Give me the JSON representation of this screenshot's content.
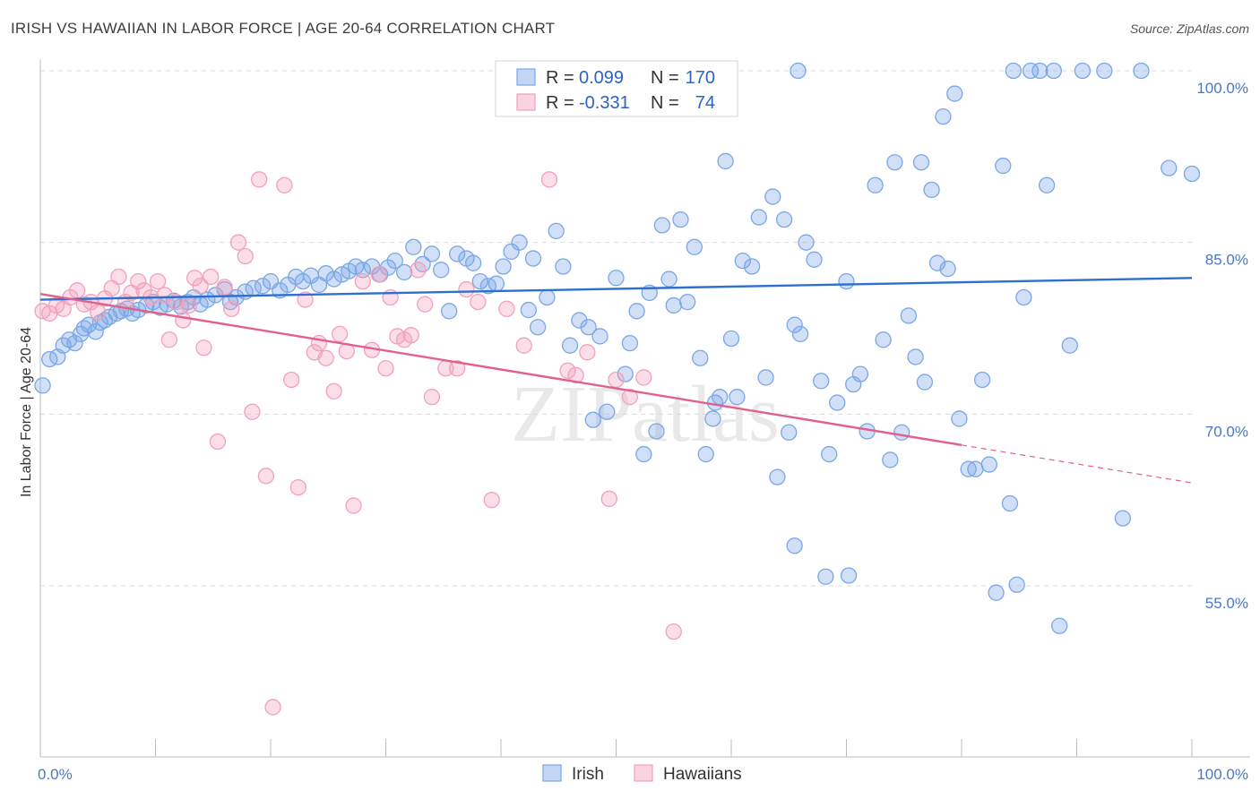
{
  "title": "IRISH VS HAWAIIAN IN LABOR FORCE | AGE 20-64 CORRELATION CHART",
  "source": "Source: ZipAtlas.com",
  "watermark": "ZIPatlas",
  "chart_data": {
    "type": "scatter",
    "xlabel": "",
    "ylabel": "In Labor Force | Age 20-64",
    "xlim": [
      0,
      100
    ],
    "ylim": [
      40,
      103
    ],
    "x_tick_labels": [
      "0.0%",
      "100.0%"
    ],
    "y_ticks": [
      55,
      70,
      85,
      100
    ],
    "y_tick_labels": [
      "55.0%",
      "70.0%",
      "85.0%",
      "100.0%"
    ],
    "grid": true,
    "legend_position": "top-center",
    "legend": [
      {
        "name": "Irish",
        "r_label": "R =",
        "r": "0.099",
        "n_label": "N =",
        "n": "170",
        "color": "#7aa7e8"
      },
      {
        "name": "Hawaiians",
        "r_label": "R =",
        "r": "-0.331",
        "n_label": "N =",
        "n": "74",
        "color": "#f3a0bb"
      }
    ],
    "series": [
      {
        "name": "Irish",
        "color": "#7aa7e8",
        "line_color": "#2e6fcf",
        "trend": {
          "x": [
            0,
            100
          ],
          "y": [
            80.0,
            81.9
          ]
        },
        "points": [
          [
            0.2,
            72.5
          ],
          [
            0.8,
            74.8
          ],
          [
            1.5,
            75.0
          ],
          [
            2.0,
            76.0
          ],
          [
            2.5,
            76.5
          ],
          [
            3.0,
            76.2
          ],
          [
            3.5,
            77.0
          ],
          [
            3.8,
            77.5
          ],
          [
            4.2,
            77.8
          ],
          [
            4.8,
            77.2
          ],
          [
            5.2,
            78.0
          ],
          [
            5.6,
            78.2
          ],
          [
            6.0,
            78.5
          ],
          [
            6.6,
            78.8
          ],
          [
            7.0,
            79.0
          ],
          [
            7.5,
            79.2
          ],
          [
            8.0,
            78.8
          ],
          [
            8.5,
            79.1
          ],
          [
            9.2,
            79.5
          ],
          [
            9.8,
            79.8
          ],
          [
            10.4,
            79.3
          ],
          [
            11.0,
            79.6
          ],
          [
            11.6,
            79.9
          ],
          [
            12.2,
            79.4
          ],
          [
            12.8,
            79.8
          ],
          [
            13.3,
            80.2
          ],
          [
            13.9,
            79.6
          ],
          [
            14.5,
            80.0
          ],
          [
            15.2,
            80.4
          ],
          [
            16.0,
            80.9
          ],
          [
            16.5,
            79.8
          ],
          [
            17.0,
            80.2
          ],
          [
            17.8,
            80.7
          ],
          [
            18.5,
            81.0
          ],
          [
            19.3,
            81.2
          ],
          [
            20.0,
            81.6
          ],
          [
            20.8,
            80.8
          ],
          [
            21.5,
            81.3
          ],
          [
            22.2,
            82.0
          ],
          [
            22.8,
            81.6
          ],
          [
            23.5,
            82.1
          ],
          [
            24.2,
            81.3
          ],
          [
            24.8,
            82.3
          ],
          [
            25.5,
            81.8
          ],
          [
            26.2,
            82.2
          ],
          [
            26.8,
            82.5
          ],
          [
            27.4,
            82.9
          ],
          [
            28.0,
            82.6
          ],
          [
            28.8,
            82.9
          ],
          [
            29.5,
            82.2
          ],
          [
            30.2,
            82.8
          ],
          [
            30.8,
            83.4
          ],
          [
            31.6,
            82.4
          ],
          [
            32.4,
            84.6
          ],
          [
            33.2,
            83.1
          ],
          [
            34.0,
            84.0
          ],
          [
            34.8,
            82.6
          ],
          [
            35.5,
            79.0
          ],
          [
            36.2,
            84.0
          ],
          [
            37.0,
            83.6
          ],
          [
            37.6,
            83.2
          ],
          [
            38.2,
            81.6
          ],
          [
            38.9,
            81.2
          ],
          [
            39.6,
            81.4
          ],
          [
            40.2,
            82.9
          ],
          [
            40.9,
            84.2
          ],
          [
            41.6,
            85.0
          ],
          [
            42.4,
            79.1
          ],
          [
            42.8,
            83.6
          ],
          [
            43.2,
            77.6
          ],
          [
            44.0,
            80.2
          ],
          [
            44.8,
            86.0
          ],
          [
            45.4,
            82.9
          ],
          [
            46.0,
            76.0
          ],
          [
            46.8,
            78.2
          ],
          [
            47.6,
            77.6
          ],
          [
            48.0,
            69.5
          ],
          [
            48.6,
            76.8
          ],
          [
            49.2,
            70.2
          ],
          [
            50.0,
            81.9
          ],
          [
            50.8,
            73.5
          ],
          [
            51.2,
            76.2
          ],
          [
            51.8,
            79.0
          ],
          [
            52.4,
            66.5
          ],
          [
            52.9,
            80.6
          ],
          [
            53.5,
            68.5
          ],
          [
            54.0,
            86.5
          ],
          [
            54.6,
            81.8
          ],
          [
            55.0,
            79.5
          ],
          [
            55.6,
            87.0
          ],
          [
            56.2,
            79.8
          ],
          [
            56.8,
            84.6
          ],
          [
            57.3,
            74.9
          ],
          [
            57.8,
            66.5
          ],
          [
            58.4,
            69.6
          ],
          [
            59.0,
            71.5
          ],
          [
            59.5,
            92.1
          ],
          [
            60.0,
            76.6
          ],
          [
            60.5,
            71.5
          ],
          [
            61.0,
            83.4
          ],
          [
            61.8,
            82.9
          ],
          [
            62.4,
            87.2
          ],
          [
            63.0,
            73.2
          ],
          [
            63.6,
            89.0
          ],
          [
            64.0,
            64.5
          ],
          [
            64.6,
            87.0
          ],
          [
            65.0,
            68.4
          ],
          [
            65.5,
            77.8
          ],
          [
            66.0,
            77.0
          ],
          [
            66.5,
            85.0
          ],
          [
            67.2,
            83.5
          ],
          [
            67.8,
            72.9
          ],
          [
            68.5,
            66.5
          ],
          [
            69.2,
            71.0
          ],
          [
            70.0,
            81.6
          ],
          [
            70.6,
            72.6
          ],
          [
            71.2,
            73.5
          ],
          [
            71.8,
            68.5
          ],
          [
            72.5,
            90.0
          ],
          [
            73.2,
            76.5
          ],
          [
            73.8,
            66.0
          ],
          [
            74.2,
            92.0
          ],
          [
            74.8,
            68.4
          ],
          [
            75.4,
            78.6
          ],
          [
            76.0,
            75.0
          ],
          [
            76.5,
            92.0
          ],
          [
            76.8,
            72.8
          ],
          [
            77.4,
            89.6
          ],
          [
            77.9,
            83.2
          ],
          [
            78.4,
            96.0
          ],
          [
            78.8,
            82.7
          ],
          [
            79.4,
            98.0
          ],
          [
            79.8,
            69.6
          ],
          [
            80.6,
            65.2
          ],
          [
            81.2,
            65.2
          ],
          [
            81.8,
            73.0
          ],
          [
            82.4,
            65.6
          ],
          [
            83.0,
            54.4
          ],
          [
            83.6,
            91.7
          ],
          [
            84.2,
            62.2
          ],
          [
            84.8,
            55.1
          ],
          [
            85.4,
            80.2
          ],
          [
            86.0,
            100.0
          ],
          [
            86.8,
            100.0
          ],
          [
            87.4,
            90.0
          ],
          [
            88.0,
            100.0
          ],
          [
            88.5,
            51.5
          ],
          [
            89.4,
            76.0
          ],
          [
            90.5,
            100.0
          ],
          [
            92.4,
            100.0
          ],
          [
            94.0,
            60.9
          ],
          [
            95.6,
            100.0
          ],
          [
            98.0,
            91.5
          ],
          [
            100.0,
            91.0
          ],
          [
            65.5,
            58.5
          ],
          [
            65.8,
            100.0
          ],
          [
            84.5,
            100.0
          ],
          [
            68.2,
            55.8
          ],
          [
            70.2,
            55.9
          ],
          [
            58.6,
            71.0
          ]
        ]
      },
      {
        "name": "Hawaiians",
        "color": "#f3a0bb",
        "line_color": "#e0608e",
        "trend": {
          "x": [
            0,
            80
          ],
          "y": [
            80.5,
            67.3
          ]
        },
        "trend_dashed": {
          "x": [
            80,
            100
          ],
          "y": [
            67.3,
            64.0
          ]
        },
        "points": [
          [
            0.2,
            79.0
          ],
          [
            0.8,
            78.8
          ],
          [
            1.4,
            79.5
          ],
          [
            2.0,
            79.2
          ],
          [
            2.6,
            80.2
          ],
          [
            3.2,
            80.8
          ],
          [
            3.8,
            79.6
          ],
          [
            4.4,
            79.8
          ],
          [
            5.0,
            78.9
          ],
          [
            5.6,
            80.1
          ],
          [
            6.2,
            81.0
          ],
          [
            6.8,
            82.0
          ],
          [
            7.4,
            79.8
          ],
          [
            7.9,
            80.6
          ],
          [
            8.5,
            81.6
          ],
          [
            9.0,
            80.8
          ],
          [
            9.6,
            80.2
          ],
          [
            10.2,
            81.6
          ],
          [
            10.8,
            80.4
          ],
          [
            11.2,
            76.5
          ],
          [
            11.8,
            79.8
          ],
          [
            12.4,
            78.2
          ],
          [
            12.9,
            79.5
          ],
          [
            13.4,
            81.9
          ],
          [
            13.9,
            81.2
          ],
          [
            14.2,
            75.8
          ],
          [
            14.8,
            82.0
          ],
          [
            15.4,
            67.6
          ],
          [
            16.0,
            81.1
          ],
          [
            16.6,
            79.2
          ],
          [
            17.2,
            85.0
          ],
          [
            17.8,
            83.8
          ],
          [
            18.4,
            70.2
          ],
          [
            19.0,
            90.5
          ],
          [
            19.6,
            64.6
          ],
          [
            20.2,
            44.4
          ],
          [
            21.2,
            90.0
          ],
          [
            21.8,
            73.0
          ],
          [
            22.4,
            63.6
          ],
          [
            23.0,
            80.0
          ],
          [
            23.8,
            75.4
          ],
          [
            24.2,
            76.2
          ],
          [
            24.8,
            74.9
          ],
          [
            25.5,
            72.0
          ],
          [
            26.0,
            77.0
          ],
          [
            26.6,
            75.5
          ],
          [
            27.2,
            62.0
          ],
          [
            28.0,
            81.6
          ],
          [
            28.8,
            75.6
          ],
          [
            29.4,
            82.2
          ],
          [
            30.0,
            74.0
          ],
          [
            30.4,
            80.2
          ],
          [
            31.0,
            76.8
          ],
          [
            31.6,
            76.5
          ],
          [
            32.2,
            76.9
          ],
          [
            32.8,
            82.6
          ],
          [
            33.4,
            79.6
          ],
          [
            34.0,
            71.5
          ],
          [
            35.2,
            74.0
          ],
          [
            36.2,
            74.0
          ],
          [
            37.0,
            80.9
          ],
          [
            38.0,
            79.8
          ],
          [
            39.2,
            62.5
          ],
          [
            40.5,
            79.2
          ],
          [
            42.0,
            76.0
          ],
          [
            44.2,
            90.5
          ],
          [
            45.8,
            73.8
          ],
          [
            46.5,
            73.4
          ],
          [
            47.5,
            75.4
          ],
          [
            49.4,
            62.6
          ],
          [
            50.0,
            73.0
          ],
          [
            51.2,
            71.5
          ],
          [
            52.4,
            73.2
          ],
          [
            55.0,
            51.0
          ]
        ]
      }
    ]
  }
}
